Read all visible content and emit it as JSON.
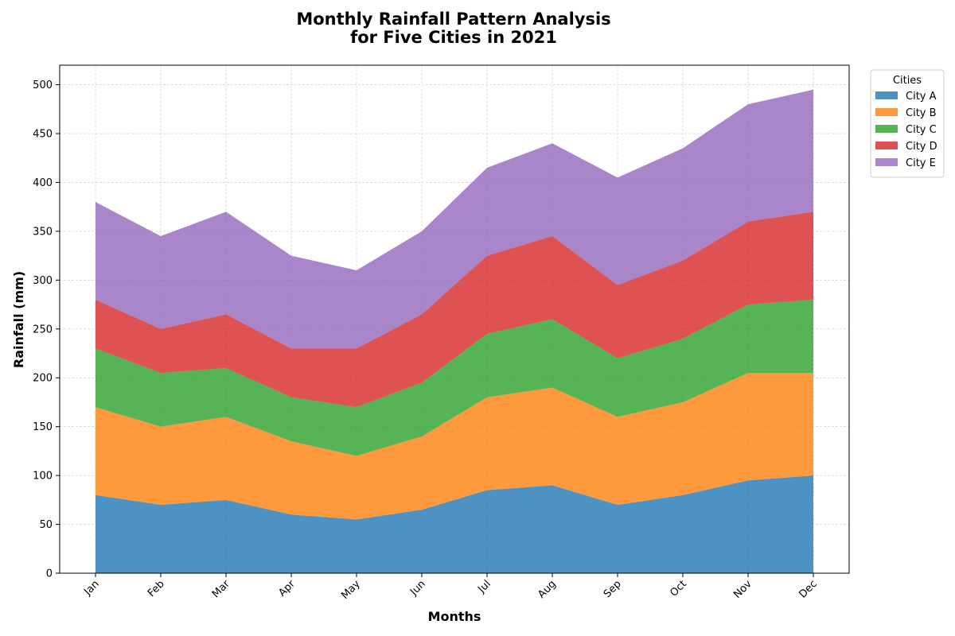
{
  "chart_data": {
    "type": "area",
    "stacked": true,
    "title_lines": [
      "Monthly Rainfall Pattern Analysis",
      "for Five Cities in 2021"
    ],
    "xlabel": "Months",
    "ylabel": "Rainfall (mm)",
    "categories": [
      "Jan",
      "Feb",
      "Mar",
      "Apr",
      "May",
      "Jun",
      "Jul",
      "Aug",
      "Sep",
      "Oct",
      "Nov",
      "Dec"
    ],
    "ylim": [
      0,
      520
    ],
    "yticks": [
      0,
      50,
      100,
      150,
      200,
      250,
      300,
      350,
      400,
      450,
      500
    ],
    "grid": true,
    "legend": {
      "title": "Cities",
      "placement": "outside-top-right"
    },
    "series": [
      {
        "name": "City A",
        "color": "#1f77b4",
        "values": [
          80,
          70,
          75,
          60,
          55,
          65,
          85,
          90,
          70,
          80,
          95,
          100
        ]
      },
      {
        "name": "City B",
        "color": "#ff7f0e",
        "values": [
          90,
          80,
          85,
          75,
          65,
          75,
          95,
          100,
          90,
          95,
          110,
          105
        ]
      },
      {
        "name": "City C",
        "color": "#2ca02c",
        "values": [
          60,
          55,
          50,
          45,
          50,
          55,
          65,
          70,
          60,
          65,
          70,
          75
        ]
      },
      {
        "name": "City D",
        "color": "#d62728",
        "values": [
          50,
          45,
          55,
          50,
          60,
          70,
          80,
          85,
          75,
          80,
          85,
          90
        ]
      },
      {
        "name": "City E",
        "color": "#9467bd",
        "values": [
          100,
          95,
          105,
          95,
          80,
          85,
          90,
          95,
          110,
          115,
          120,
          125
        ]
      }
    ]
  }
}
